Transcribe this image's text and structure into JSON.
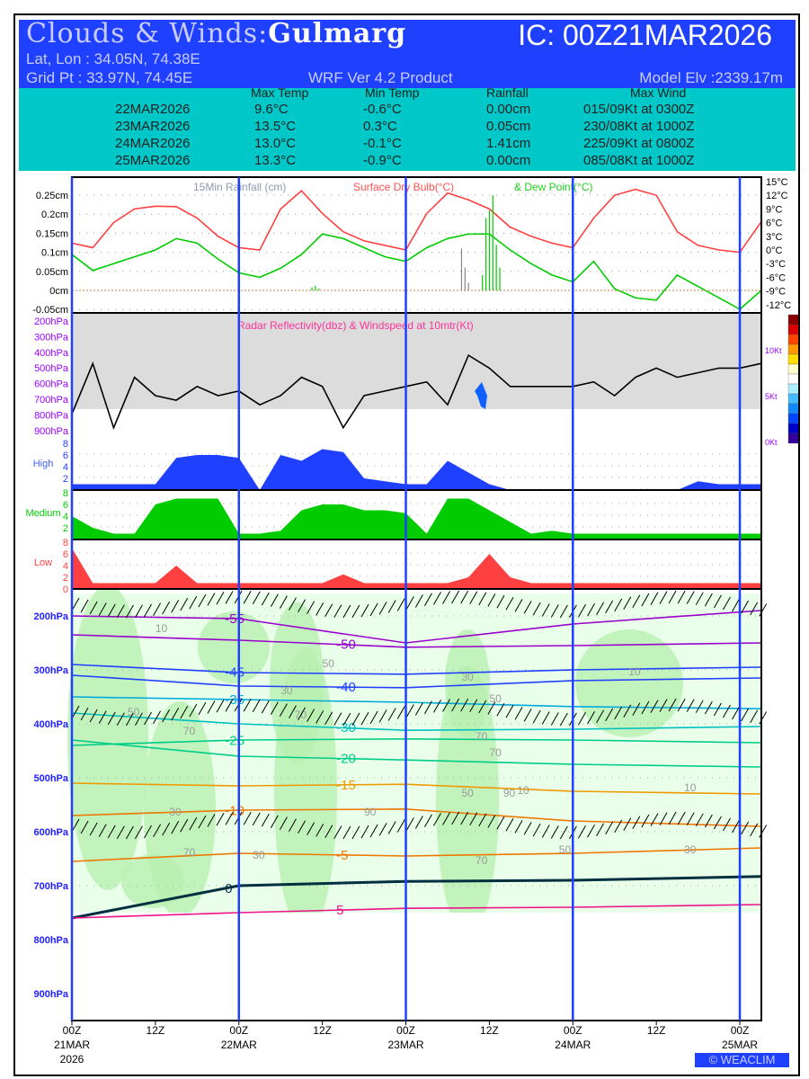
{
  "header": {
    "title_prefix": "Clouds & Winds:",
    "location": "Gulmarg",
    "ic": "IC: 00Z21MAR2026",
    "latlon": "Lat, Lon : 34.05N, 74.38E",
    "grid": "Grid Pt  : 33.97N, 74.45E",
    "product": "WRF Ver 4.2 Product",
    "elev": "Model Elv :2339.17m",
    "bg_color": "#2040ff"
  },
  "summary": {
    "columns": [
      "Max Temp",
      "Min Temp",
      "Rainfall",
      "Max Wind"
    ],
    "rows": [
      {
        "date": "22MAR2026",
        "max": "9.6°C",
        "min": "-0.6°C",
        "rain": "0.00cm",
        "wind": "015/09Kt at 0300Z"
      },
      {
        "date": "23MAR2026",
        "max": "13.5°C",
        "min": "0.3°C",
        "rain": "0.05cm",
        "wind": "230/08Kt at 1000Z"
      },
      {
        "date": "24MAR2026",
        "max": "13.0°C",
        "min": "-0.1°C",
        "rain": "1.41cm",
        "wind": "225/09Kt at 0800Z"
      },
      {
        "date": "25MAR2026",
        "max": "13.3°C",
        "min": "-0.9°C",
        "rain": "0.00cm",
        "wind": "085/08Kt at 1000Z"
      }
    ]
  },
  "chart_data": [
    {
      "type": "line",
      "title_parts": [
        "15Min Rainfall (cm)",
        "Surface Dry Bulb(°C)",
        "& Dew Point(°C)"
      ],
      "hours_step": 3,
      "rain_ticks": [
        "0.25cm",
        "0.2cm",
        "0.15cm",
        "0.1cm",
        "0.05cm",
        "0cm",
        "-0.05cm"
      ],
      "rain_range": [
        -0.05,
        0.25
      ],
      "temp_ticks": [
        "15°C",
        "12°C",
        "9°C",
        "6°C",
        "3°C",
        "0°C",
        "-3°C",
        "-6°C",
        "-9°C",
        "-12°C"
      ],
      "temp_range": [
        -12,
        15
      ],
      "series": [
        {
          "name": "Surface Dry Bulb",
          "color": "#ff4040",
          "values": [
            1.5,
            0.5,
            6,
            9,
            9.6,
            9.5,
            7,
            3,
            0.5,
            0,
            9,
            13,
            8,
            4,
            2,
            1,
            0,
            8,
            12.5,
            11,
            9,
            5,
            3,
            1.5,
            0.5,
            7,
            12,
            13.3,
            12,
            4,
            1,
            0,
            -0.5,
            6
          ]
        },
        {
          "name": "Dew Point",
          "color": "#00cc00",
          "values": [
            -1,
            -4.5,
            -3,
            -1.5,
            0,
            2.5,
            1.5,
            -2,
            -5,
            -6,
            -4,
            -1,
            3.5,
            2.5,
            0.5,
            -1.5,
            -2.5,
            0.5,
            2.5,
            3.5,
            3.5,
            0,
            -3,
            -5.5,
            -7,
            -2.5,
            -8.5,
            -10.5,
            -11,
            -5.5,
            -8,
            -10.5,
            -13,
            -9
          ]
        }
      ],
      "rain_bars": [
        [
          34.5,
          0.008
        ],
        [
          35,
          0.012
        ],
        [
          35.5,
          0.005
        ],
        [
          56,
          0.11
        ],
        [
          56.5,
          0.06
        ],
        [
          57,
          0.02
        ],
        [
          59,
          0.04
        ],
        [
          59.5,
          0.19
        ],
        [
          60,
          0.21
        ],
        [
          60.5,
          0.25
        ],
        [
          61,
          0.12
        ],
        [
          61.5,
          0.06
        ]
      ]
    },
    {
      "type": "line",
      "title": "Radar Reflectivity(dbz) & Windspeed at 10mtr(Kt)",
      "pressure_ticks": [
        "200hPa",
        "300hPa",
        "400hPa",
        "500hPa",
        "600hPa",
        "700hPa",
        "800hPa",
        "900hPa"
      ],
      "wind_ticks": [
        "10Kt",
        "5Kt",
        "0Kt"
      ],
      "wind_range": [
        0,
        10
      ],
      "series": [
        {
          "name": "Windspeed 10m",
          "color": "#000000",
          "values": [
            3,
            8.5,
            1.5,
            7,
            5,
            4.5,
            6,
            5,
            5.5,
            4,
            5,
            7,
            6,
            1.5,
            5,
            5.5,
            6,
            6.5,
            4,
            9.4,
            8,
            6,
            6,
            6,
            6,
            6.5,
            5,
            7,
            8,
            7,
            7.5,
            8,
            8,
            8.5
          ]
        }
      ]
    },
    {
      "type": "area",
      "name": "High",
      "ticks": [
        "8",
        "6",
        "4",
        "2"
      ],
      "color": "#2040ff",
      "values": [
        1,
        1,
        1,
        1,
        1,
        5.5,
        6,
        6,
        5.5,
        0,
        6,
        5,
        7,
        6.5,
        2,
        1.5,
        1,
        1,
        5,
        3,
        1,
        0,
        0,
        0,
        0,
        0,
        0,
        0,
        0,
        0,
        1.5,
        1,
        1,
        1
      ]
    },
    {
      "type": "area",
      "name": "Medium",
      "ticks": [
        "8",
        "6",
        "4",
        "2"
      ],
      "color": "#00cc00",
      "values": [
        4,
        2,
        1,
        1,
        6,
        7,
        7,
        7,
        1,
        1,
        1.5,
        5,
        6,
        6,
        5,
        5,
        4.5,
        1,
        7,
        7,
        5,
        3,
        1,
        1.5,
        1,
        1,
        1,
        1,
        1,
        1,
        1,
        1,
        1,
        1
      ]
    },
    {
      "type": "area",
      "name": "Low",
      "ticks": [
        "8",
        "6",
        "4",
        "2",
        "0"
      ],
      "color": "#ff4040",
      "values": [
        7,
        1,
        1,
        1,
        1,
        4,
        1,
        1,
        1,
        1,
        1,
        1,
        1,
        2.5,
        1,
        1,
        1,
        1,
        1,
        2,
        6,
        2,
        1,
        1,
        1,
        1,
        1,
        1,
        1,
        1,
        1,
        1,
        1,
        1
      ]
    },
    {
      "type": "contour",
      "pressure_ticks": [
        "200hPa",
        "300hPa",
        "400hPa",
        "500hPa",
        "600hPa",
        "700hPa",
        "800hPa",
        "900hPa"
      ],
      "x_ticks": [
        "00Z",
        "12Z",
        "00Z",
        "12Z",
        "00Z",
        "12Z",
        "00Z",
        "12Z",
        "00Z"
      ],
      "x_dates": [
        "21MAR",
        "22MAR",
        "23MAR",
        "24MAR",
        "25MAR"
      ],
      "x_year": "2026",
      "isotherm_hours": [
        0,
        24,
        48,
        72,
        99
      ],
      "isotherms": [
        {
          "label": "-55",
          "color": "#9900cc",
          "p": [
            200,
            205,
            250,
            215,
            190
          ]
        },
        {
          "label": "-50",
          "color": "#9900cc",
          "p": [
            235,
            245,
            258,
            255,
            250
          ]
        },
        {
          "label": "-45",
          "color": "#2040ff",
          "p": [
            290,
            305,
            308,
            300,
            295
          ]
        },
        {
          "label": "-40",
          "color": "#2040ff",
          "p": [
            310,
            330,
            333,
            320,
            315
          ]
        },
        {
          "label": "-35",
          "color": "#00aadd",
          "p": [
            350,
            355,
            360,
            368,
            372
          ]
        },
        {
          "label": "-30",
          "color": "#00c0c0",
          "p": [
            380,
            400,
            412,
            410,
            405
          ]
        },
        {
          "label": "-25",
          "color": "#00cc88",
          "p": [
            440,
            430,
            428,
            430,
            435
          ]
        },
        {
          "label": "-20",
          "color": "#00cc88",
          "p": [
            430,
            460,
            467,
            475,
            480
          ]
        },
        {
          "label": "-15",
          "color": "#ee9900",
          "p": [
            510,
            515,
            512,
            525,
            530
          ]
        },
        {
          "label": "-10",
          "color": "#ee7700",
          "p": [
            570,
            560,
            558,
            580,
            590
          ]
        },
        {
          "label": "-5",
          "color": "#ee7700",
          "p": [
            655,
            640,
            645,
            640,
            630
          ]
        },
        {
          "label": "0",
          "color": "#003040",
          "p": [
            760,
            700,
            692,
            690,
            683
          ]
        },
        {
          "label": "5",
          "color": "#ee1188",
          "p": [
            760,
            750,
            742,
            740,
            735
          ]
        }
      ],
      "rh_labels": [
        [
          "10",
          12,
          230
        ],
        [
          "30",
          30,
          345
        ],
        [
          "50",
          36,
          295
        ],
        [
          "70",
          32,
          390
        ],
        [
          "50",
          8,
          385
        ],
        [
          "70",
          16,
          420
        ],
        [
          "30",
          56,
          320
        ],
        [
          "50",
          60,
          360
        ],
        [
          "70",
          58,
          430
        ],
        [
          "70",
          60,
          460
        ],
        [
          "50",
          56,
          535
        ],
        [
          "90",
          62,
          535
        ],
        [
          "10",
          64,
          530
        ],
        [
          "30",
          14,
          570
        ],
        [
          "90",
          42,
          570
        ],
        [
          "70",
          16,
          645
        ],
        [
          "30",
          26,
          650
        ],
        [
          "70",
          58,
          660
        ],
        [
          "50",
          70,
          640
        ],
        [
          "30",
          88,
          640
        ],
        [
          "10",
          88,
          525
        ],
        [
          "10",
          80,
          310
        ]
      ],
      "wind_barb_levels_hPa": [
        190,
        390,
        600
      ]
    }
  ],
  "logo": "© WEACLIM"
}
